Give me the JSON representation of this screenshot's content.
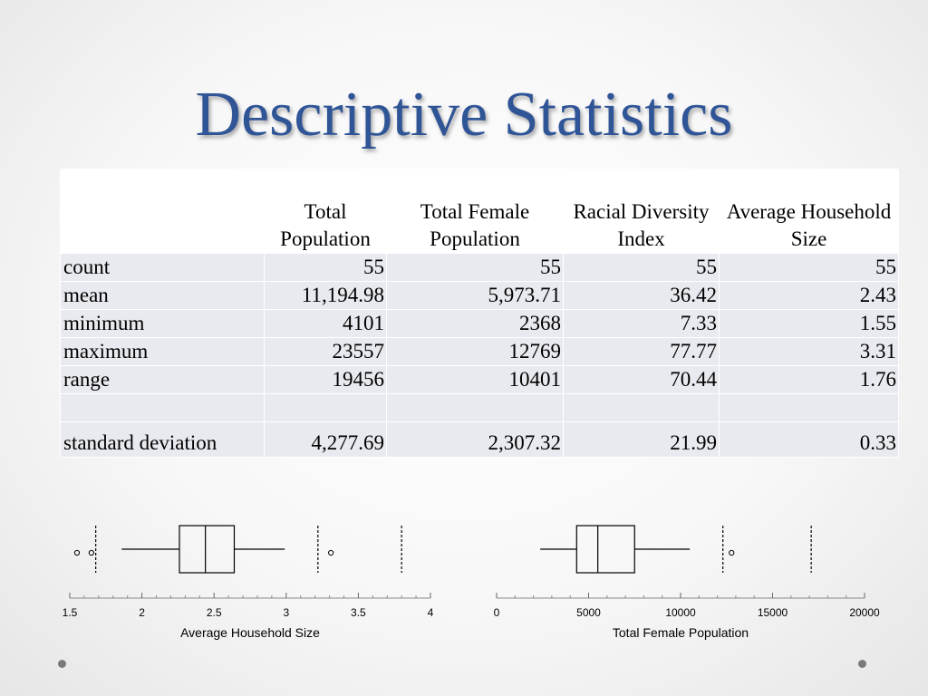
{
  "slide": {
    "title": "Descriptive Statistics"
  },
  "table": {
    "headers": [
      "",
      "Total Population",
      "Total Female Population",
      "Racial Diversity Index",
      "Average Household Size"
    ],
    "rows": [
      {
        "label": "count",
        "values": [
          "55",
          "55",
          "55",
          "55"
        ]
      },
      {
        "label": "mean",
        "values": [
          "11,194.98",
          "5,973.71",
          "36.42",
          "2.43"
        ]
      },
      {
        "label": "minimum",
        "values": [
          "4101",
          "2368",
          "7.33",
          "1.55"
        ]
      },
      {
        "label": "maximum",
        "values": [
          "23557",
          "12769",
          "77.77",
          "3.31"
        ]
      },
      {
        "label": "range",
        "values": [
          "19456",
          "10401",
          "70.44",
          "1.76"
        ]
      },
      {
        "label": "",
        "values": [
          "",
          "",
          "",
          ""
        ]
      },
      {
        "label": "standard deviation",
        "values": [
          "4,277.69",
          "2,307.32",
          "21.99",
          "0.33"
        ]
      }
    ]
  },
  "chart_data": [
    {
      "type": "boxplot",
      "xlabel": "Average Household Size",
      "xlim": [
        1.5,
        4
      ],
      "ticks": [
        "1.5",
        "2",
        "2.5",
        "3",
        "3.5",
        "4"
      ],
      "box": {
        "whisker_low": 1.86,
        "q1": 2.26,
        "median": 2.44,
        "q3": 2.64,
        "whisker_high": 2.99
      },
      "fences": [
        1.68,
        3.22,
        3.8
      ],
      "outliers": [
        1.55,
        1.65,
        3.31
      ]
    },
    {
      "type": "boxplot",
      "xlabel": "Total Female Population",
      "xlim": [
        0,
        20000
      ],
      "ticks": [
        "0",
        "5000",
        "10000",
        "15000",
        "20000"
      ],
      "box": {
        "whisker_low": 2368,
        "q1": 4350,
        "median": 5500,
        "q3": 7500,
        "whisker_high": 10500
      },
      "fences": [
        12300,
        17100
      ],
      "outliers": [
        12769
      ]
    }
  ]
}
